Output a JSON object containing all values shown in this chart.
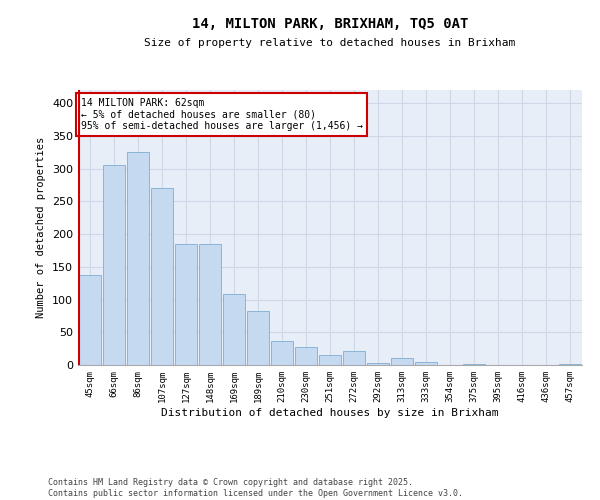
{
  "title1": "14, MILTON PARK, BRIXHAM, TQ5 0AT",
  "title2": "Size of property relative to detached houses in Brixham",
  "xlabel": "Distribution of detached houses by size in Brixham",
  "ylabel": "Number of detached properties",
  "categories": [
    "45sqm",
    "66sqm",
    "86sqm",
    "107sqm",
    "127sqm",
    "148sqm",
    "169sqm",
    "189sqm",
    "210sqm",
    "230sqm",
    "251sqm",
    "272sqm",
    "292sqm",
    "313sqm",
    "333sqm",
    "354sqm",
    "375sqm",
    "395sqm",
    "416sqm",
    "436sqm",
    "457sqm"
  ],
  "values": [
    137,
    305,
    325,
    270,
    185,
    185,
    108,
    83,
    37,
    27,
    15,
    21,
    3,
    10,
    5,
    0,
    1,
    0,
    0,
    0,
    2
  ],
  "bar_color": "#c5d9f1",
  "bar_edge_color": "#8ab4d8",
  "highlight_edge_color": "#cc0000",
  "annotation_text": "14 MILTON PARK: 62sqm\n← 5% of detached houses are smaller (80)\n95% of semi-detached houses are larger (1,456) →",
  "annotation_box_color": "#ffffff",
  "annotation_box_edge_color": "#cc0000",
  "grid_color": "#d0d8e8",
  "bg_color": "#e8eef8",
  "footer": "Contains HM Land Registry data © Crown copyright and database right 2025.\nContains public sector information licensed under the Open Government Licence v3.0.",
  "ylim": [
    0,
    420
  ],
  "yticks": [
    0,
    50,
    100,
    150,
    200,
    250,
    300,
    350,
    400
  ]
}
